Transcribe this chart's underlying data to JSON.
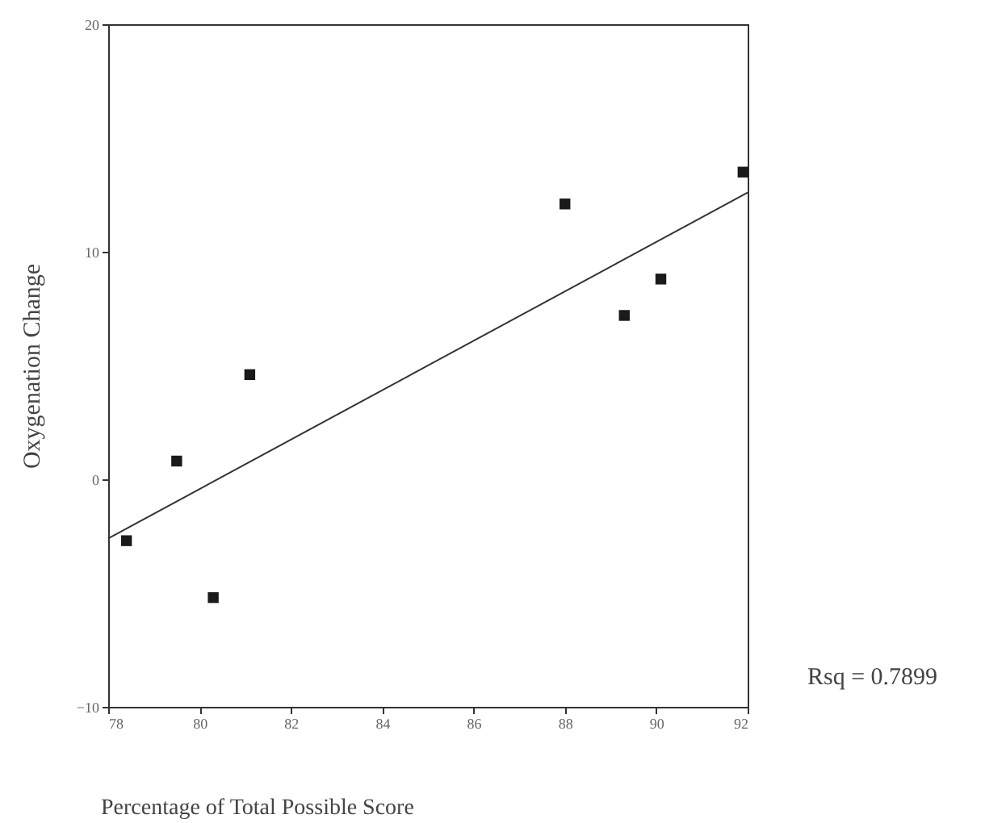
{
  "chart_data": {
    "type": "scatter",
    "xlabel": "Percentage of Total Possible Score",
    "ylabel": "Oxygenation Change",
    "annotations": [
      "Rsq = 0.7899"
    ],
    "series": [
      {
        "color": "#1a1a1a",
        "x": [
          78.4,
          79.5,
          80.3,
          81.1,
          88.0,
          89.3,
          90.1,
          91.9
        ],
        "values": [
          -2.7,
          0.8,
          -5.2,
          4.6,
          12.1,
          7.2,
          8.8,
          13.5
        ]
      },
      {
        "type": "line",
        "marker": "none",
        "color": "#333333",
        "x": [
          78,
          92
        ],
        "values": [
          -2.6,
          12.6
        ]
      }
    ],
    "xlim": [
      78,
      92
    ],
    "xticks": [
      78,
      80,
      82,
      84,
      86,
      88,
      90,
      92
    ],
    "ylim": [
      -10,
      20
    ],
    "yticks": [
      -10,
      0,
      10,
      20
    ],
    "marker": "square"
  }
}
